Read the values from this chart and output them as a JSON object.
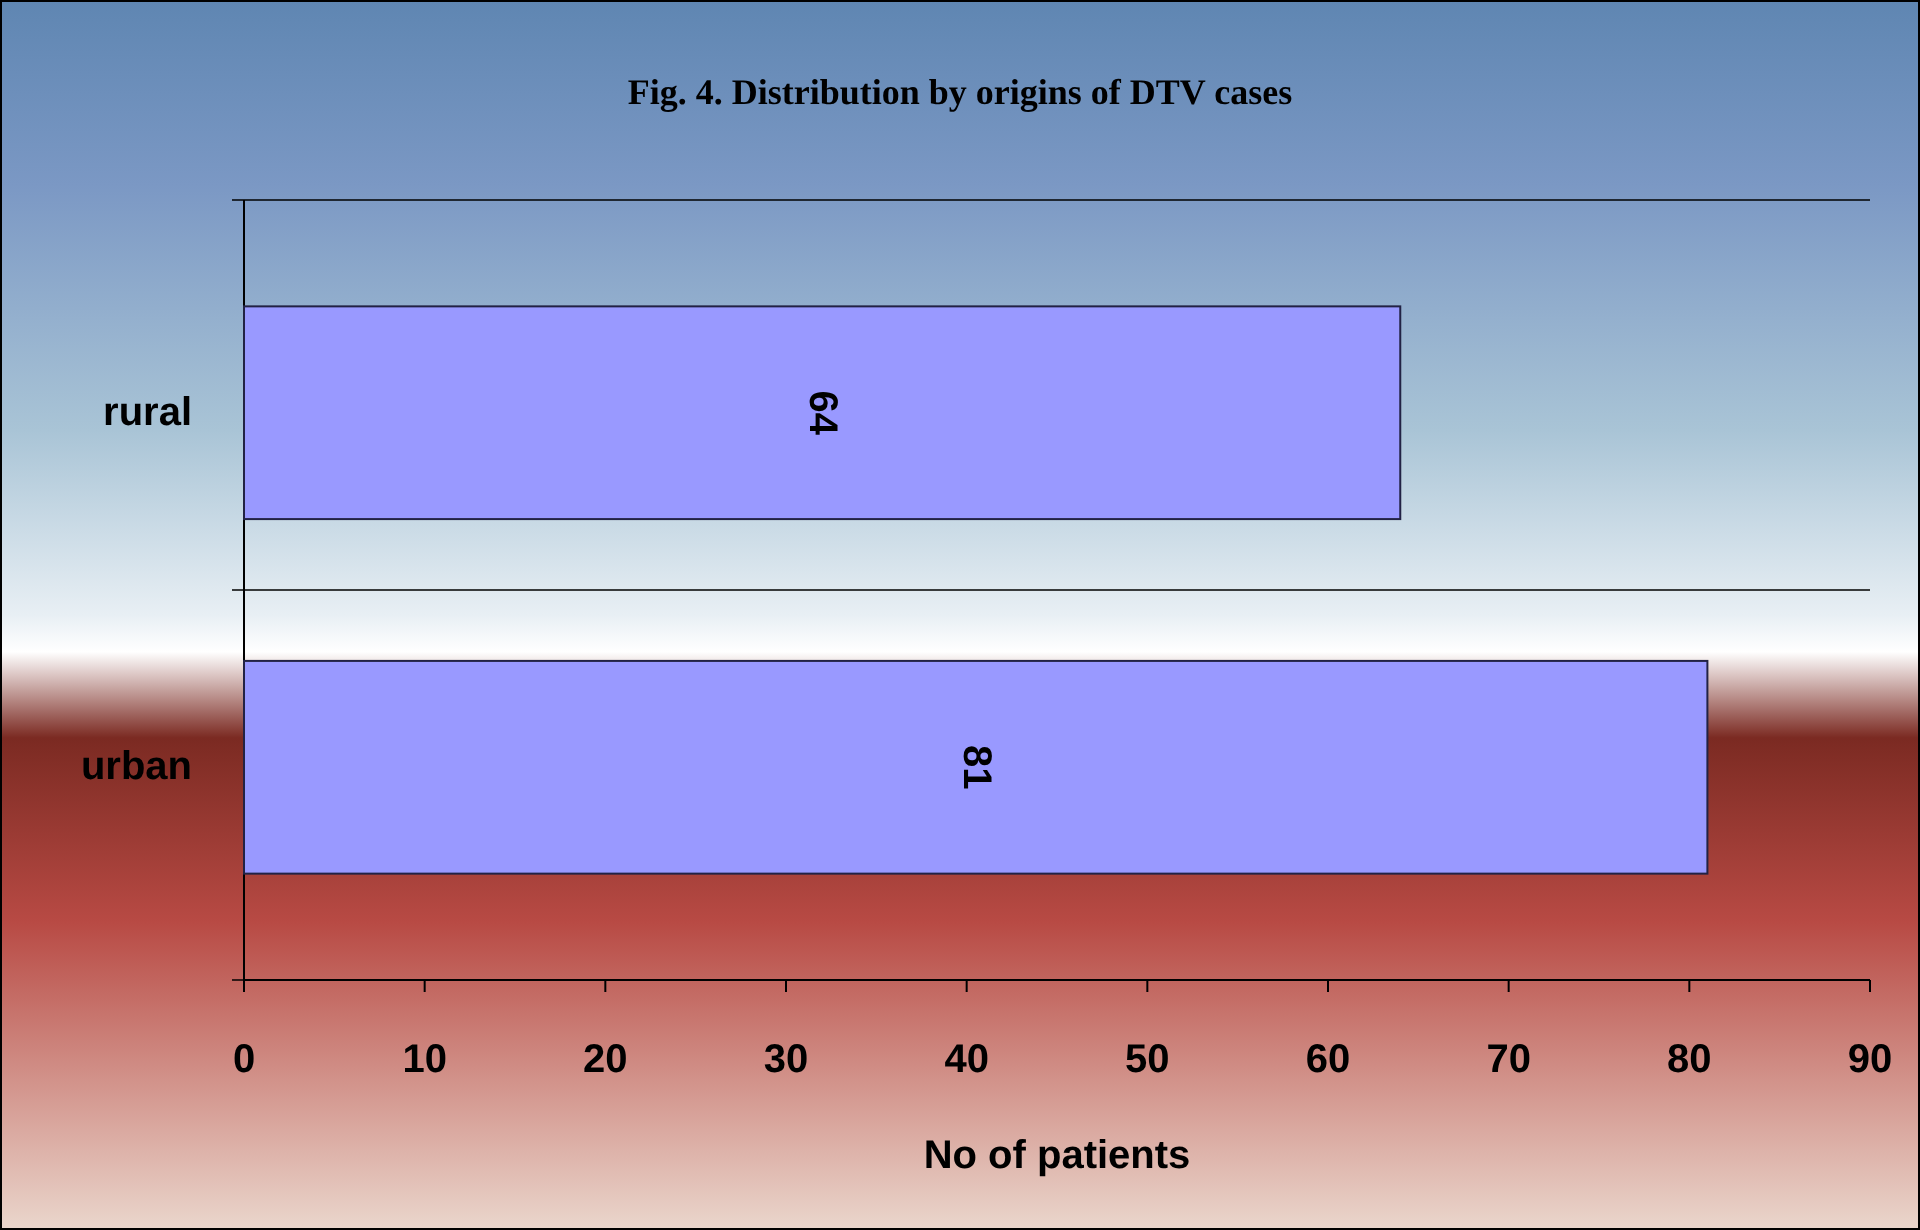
{
  "chart_data": {
    "type": "bar",
    "orientation": "horizontal",
    "title": "Fig. 4. Distribution by origins of DTV cases",
    "xlabel": "No of patients",
    "categories": [
      "rural",
      "urban"
    ],
    "values": [
      64,
      81
    ],
    "color": "#9999ff",
    "xlim": [
      0,
      90
    ],
    "xticks": [
      0,
      10,
      20,
      30,
      40,
      50,
      60,
      70,
      80,
      90
    ],
    "grid": "y",
    "data_labels": true
  }
}
